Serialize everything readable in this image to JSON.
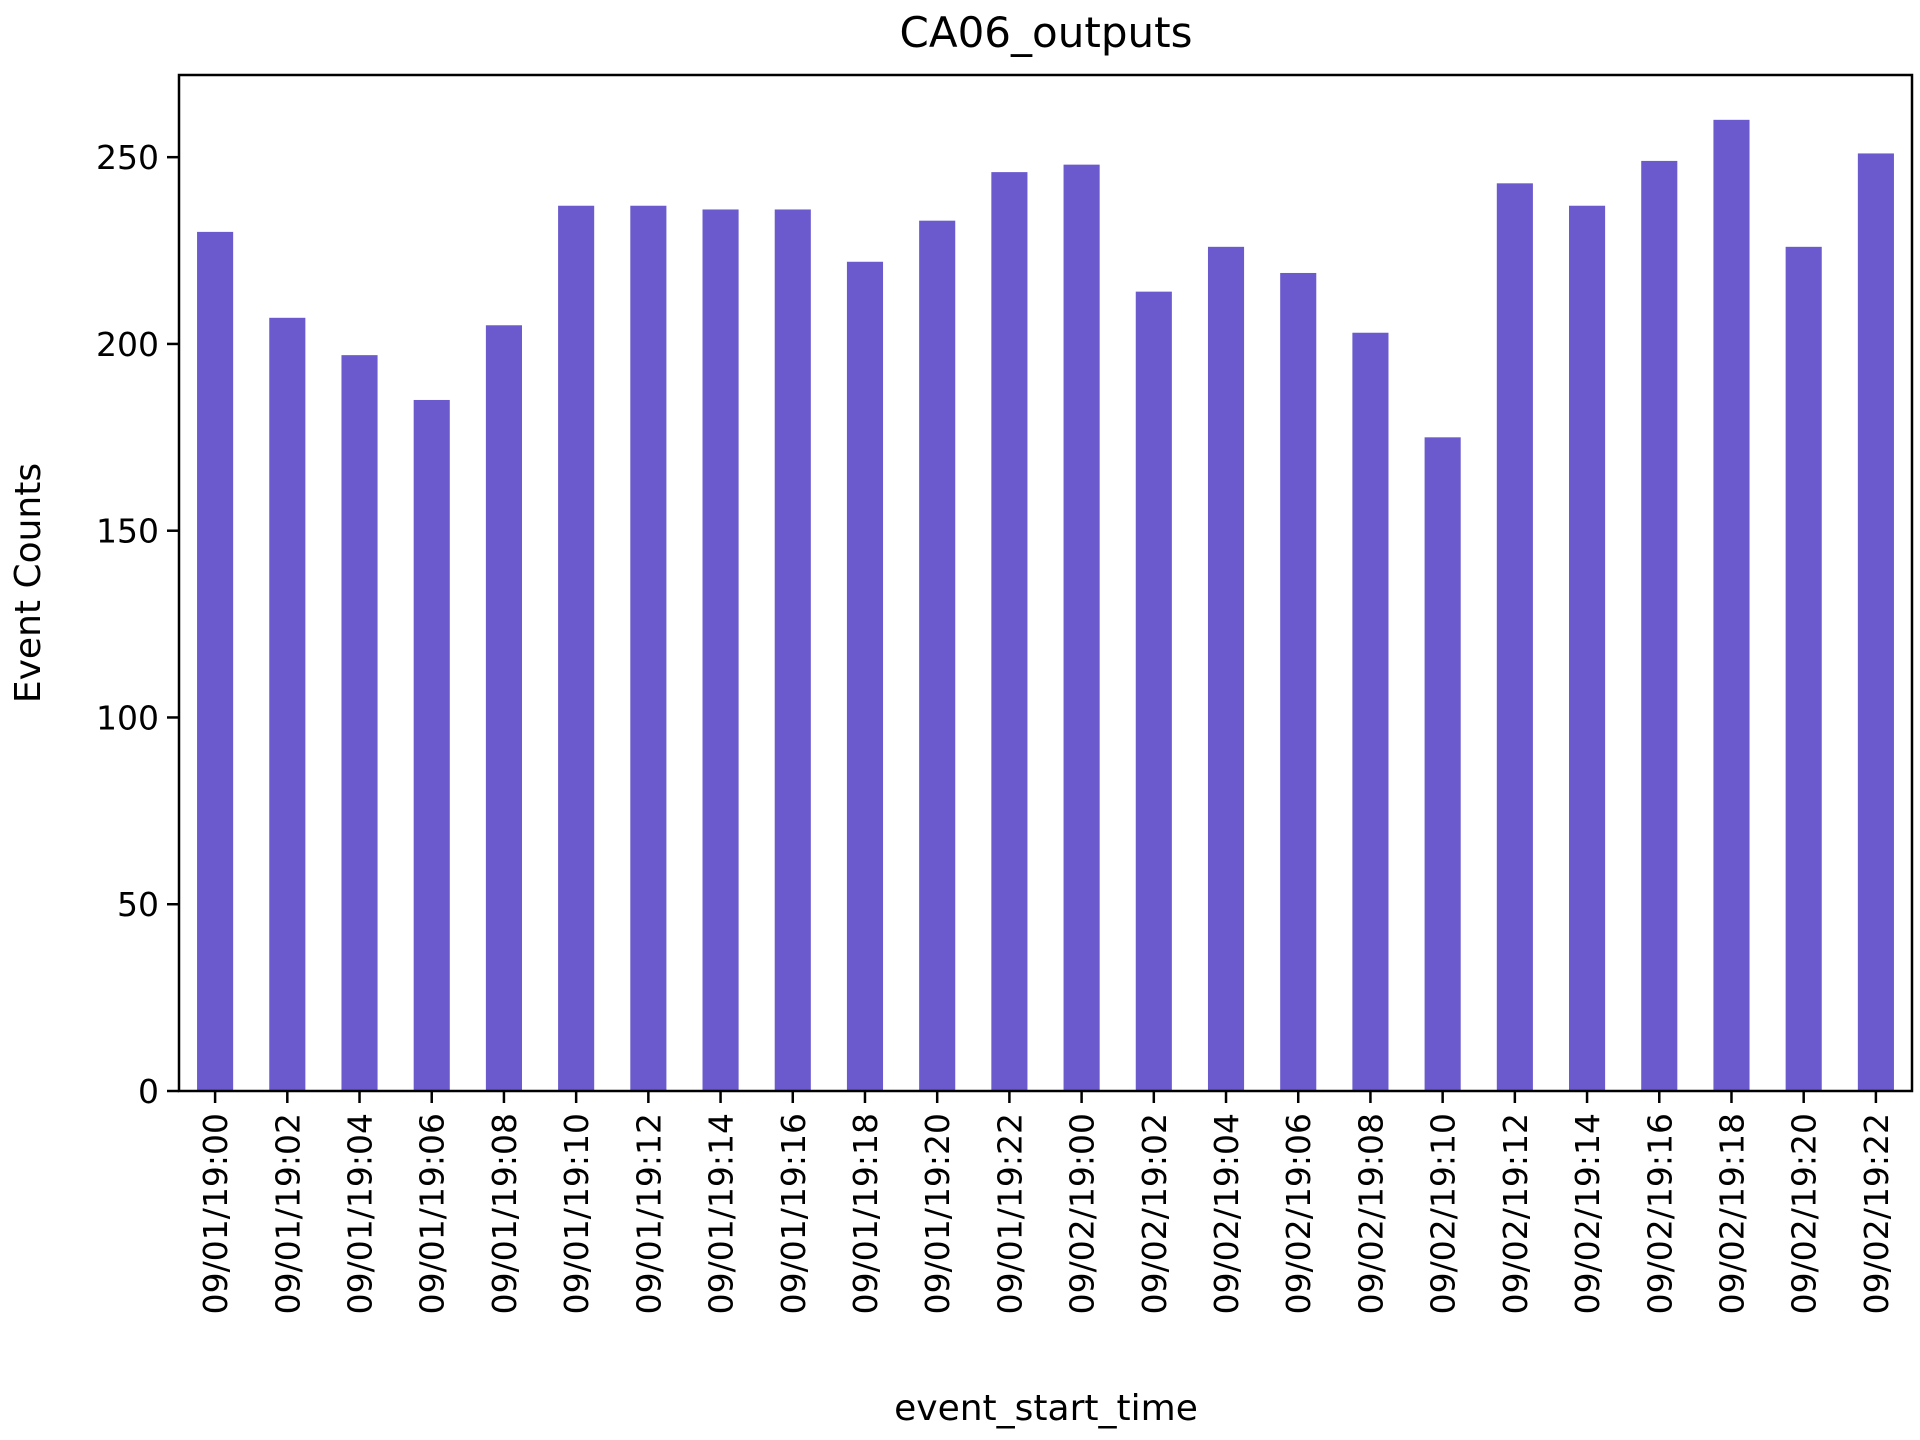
{
  "chart_data": {
    "type": "bar",
    "title": "CA06_outputs",
    "xlabel": "event_start_time",
    "ylabel": "Event Counts",
    "ylim": [
      0,
      272
    ],
    "yticks": [
      0,
      50,
      100,
      150,
      200,
      250
    ],
    "grid": false,
    "legend": "none",
    "bar_color": "#6a5acd",
    "categories": [
      "09/01/19:00",
      "09/01/19:02",
      "09/01/19:04",
      "09/01/19:06",
      "09/01/19:08",
      "09/01/19:10",
      "09/01/19:12",
      "09/01/19:14",
      "09/01/19:16",
      "09/01/19:18",
      "09/01/19:20",
      "09/01/19:22",
      "09/02/19:00",
      "09/02/19:02",
      "09/02/19:04",
      "09/02/19:06",
      "09/02/19:08",
      "09/02/19:10",
      "09/02/19:12",
      "09/02/19:14",
      "09/02/19:16",
      "09/02/19:18",
      "09/02/19:20",
      "09/02/19:22"
    ],
    "values": [
      230,
      207,
      197,
      185,
      205,
      237,
      237,
      236,
      236,
      222,
      233,
      246,
      248,
      214,
      226,
      219,
      203,
      175,
      243,
      237,
      249,
      260,
      226,
      251
    ]
  }
}
